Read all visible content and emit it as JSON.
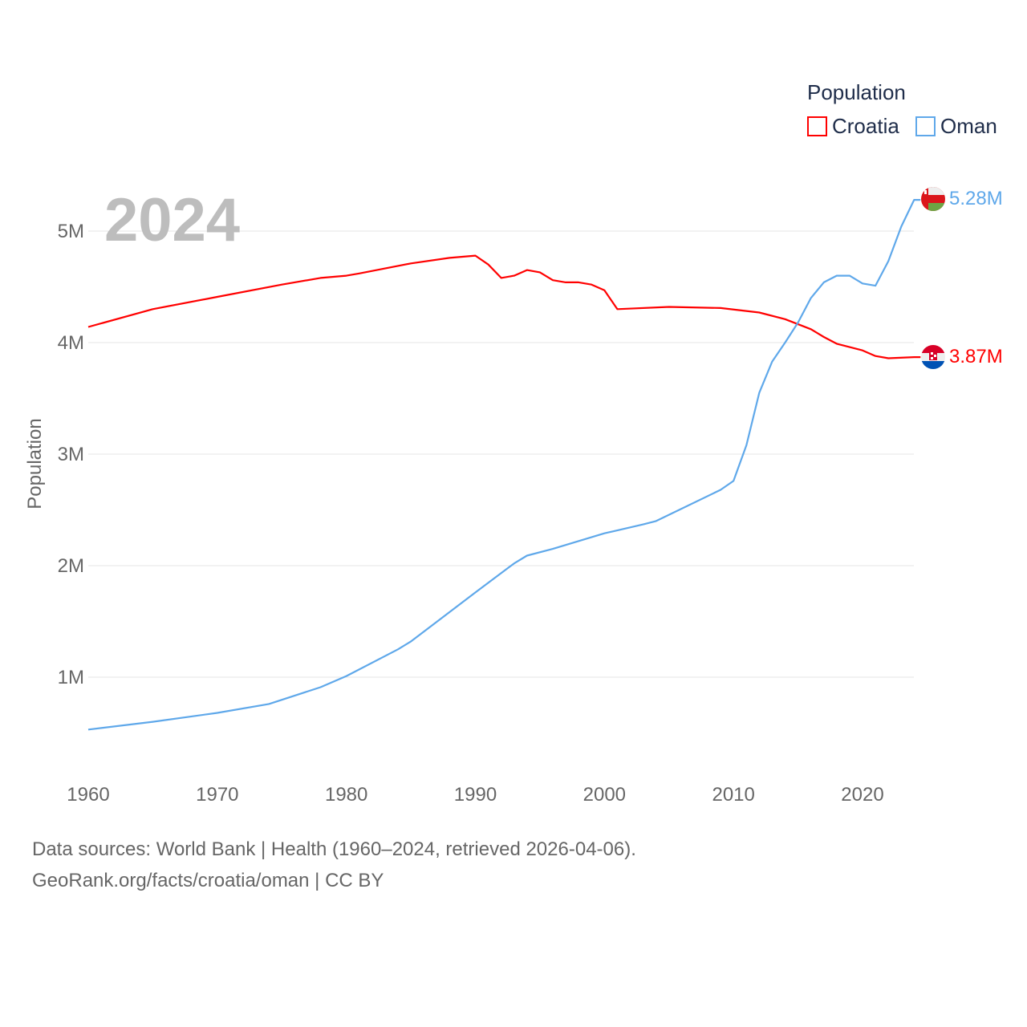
{
  "chart_data": {
    "type": "line",
    "title": "",
    "big_year_label": "2024",
    "xlabel": "",
    "ylabel": "Population",
    "xlim": [
      1960,
      2024
    ],
    "ylim": [
      0,
      5500000
    ],
    "x_ticks": [
      "1960",
      "1970",
      "1980",
      "1990",
      "2000",
      "2010",
      "2020"
    ],
    "y_ticks": [
      {
        "v": 1000000,
        "label": "1M"
      },
      {
        "v": 2000000,
        "label": "2M"
      },
      {
        "v": 3000000,
        "label": "3M"
      },
      {
        "v": 4000000,
        "label": "4M"
      },
      {
        "v": 5000000,
        "label": "5M"
      }
    ],
    "grid": true,
    "legend": {
      "title": "Population",
      "placement": "top-right"
    },
    "series": [
      {
        "name": "Croatia",
        "color": "#ff0000",
        "end_label": "3.87M",
        "points": [
          [
            1960,
            4.14
          ],
          [
            1965,
            4.3
          ],
          [
            1970,
            4.41
          ],
          [
            1975,
            4.52
          ],
          [
            1978,
            4.58
          ],
          [
            1980,
            4.6
          ],
          [
            1981,
            4.62
          ],
          [
            1985,
            4.71
          ],
          [
            1988,
            4.76
          ],
          [
            1990,
            4.78
          ],
          [
            1991,
            4.7
          ],
          [
            1992,
            4.58
          ],
          [
            1993,
            4.6
          ],
          [
            1994,
            4.65
          ],
          [
            1995,
            4.63
          ],
          [
            1996,
            4.56
          ],
          [
            1997,
            4.54
          ],
          [
            1998,
            4.54
          ],
          [
            1999,
            4.52
          ],
          [
            2000,
            4.47
          ],
          [
            2001,
            4.3
          ],
          [
            2005,
            4.32
          ],
          [
            2009,
            4.31
          ],
          [
            2012,
            4.27
          ],
          [
            2014,
            4.21
          ],
          [
            2016,
            4.12
          ],
          [
            2017,
            4.05
          ],
          [
            2018,
            3.99
          ],
          [
            2020,
            3.93
          ],
          [
            2021,
            3.88
          ],
          [
            2022,
            3.86
          ],
          [
            2024,
            3.87
          ]
        ]
      },
      {
        "name": "Oman",
        "color": "#5fa8ea",
        "end_label": "5.28M",
        "points": [
          [
            1960,
            0.53
          ],
          [
            1965,
            0.6
          ],
          [
            1970,
            0.68
          ],
          [
            1974,
            0.76
          ],
          [
            1978,
            0.91
          ],
          [
            1980,
            1.01
          ],
          [
            1984,
            1.25
          ],
          [
            1985,
            1.32
          ],
          [
            1990,
            1.76
          ],
          [
            1993,
            2.02
          ],
          [
            1994,
            2.09
          ],
          [
            1996,
            2.15
          ],
          [
            2000,
            2.29
          ],
          [
            2003,
            2.37
          ],
          [
            2004,
            2.4
          ],
          [
            2009,
            2.68
          ],
          [
            2010,
            2.76
          ],
          [
            2011,
            3.08
          ],
          [
            2012,
            3.55
          ],
          [
            2013,
            3.83
          ],
          [
            2014,
            4.0
          ],
          [
            2015,
            4.18
          ],
          [
            2016,
            4.4
          ],
          [
            2017,
            4.54
          ],
          [
            2018,
            4.6
          ],
          [
            2019,
            4.6
          ],
          [
            2020,
            4.53
          ],
          [
            2021,
            4.51
          ],
          [
            2022,
            4.73
          ],
          [
            2023,
            5.04
          ],
          [
            2024,
            5.28
          ]
        ]
      }
    ]
  },
  "footer": {
    "line1": "Data sources: World Bank | Health (1960–2024, retrieved 2026-04-06).",
    "line2": "GeoRank.org/facts/croatia/oman | CC BY"
  }
}
